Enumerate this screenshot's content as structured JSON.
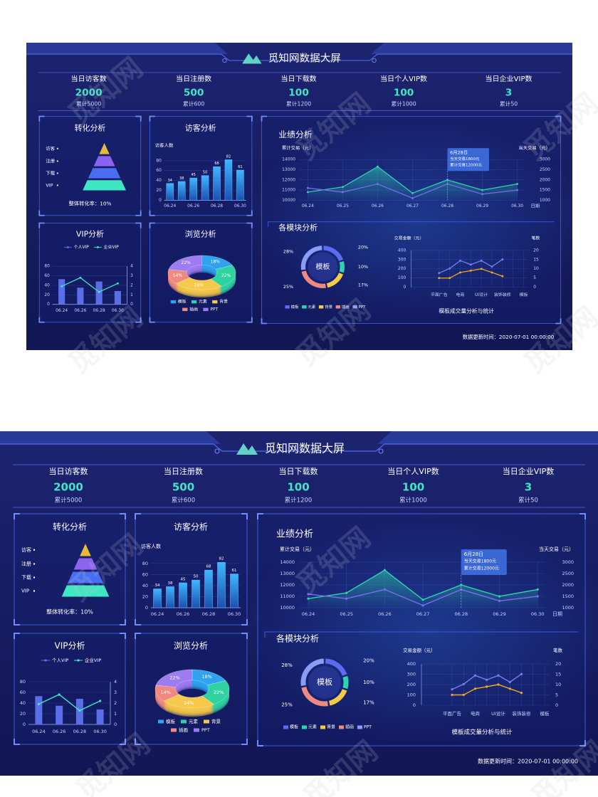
{
  "header": {
    "title": "觅知网数据大屏"
  },
  "kpis": [
    {
      "label": "当日访客数",
      "value": 2000,
      "total": "累计5000"
    },
    {
      "label": "当日注册数",
      "value": 500,
      "total": "累计600"
    },
    {
      "label": "当日下载数",
      "value": 100,
      "total": "累计1200"
    },
    {
      "label": "当日个人VIP数",
      "value": 100,
      "total": "累计1000"
    },
    {
      "label": "当日企业VIP数",
      "value": 3,
      "total": "累计50"
    }
  ],
  "chart_data": [
    {
      "type": "funnel",
      "title": "转化分析",
      "categories": [
        "访客",
        "注册",
        "下载",
        "VIP"
      ],
      "colors": [
        "#e9b83c",
        "#8a63f0",
        "#4a6df2",
        "#3fe6c2"
      ],
      "note": "整体转化率：10%"
    },
    {
      "type": "bar",
      "title": "访客分析",
      "ylabel": "访客人数",
      "categories": [
        "06.24",
        null,
        "06.26",
        null,
        "06.28",
        null,
        "06.30"
      ],
      "values": [
        34,
        38,
        45,
        50,
        68,
        82,
        61
      ],
      "color": "#2a8fd8",
      "ylim": [
        0,
        90
      ],
      "yticks": [
        0,
        20,
        40,
        60,
        80
      ],
      "grid": true
    },
    {
      "type": "bar-line",
      "title": "VIP分析",
      "categories": [
        "06.24",
        "06.26",
        "06.28",
        "06.30"
      ],
      "series": [
        {
          "name": "个人VIP",
          "color": "#5a6ee8",
          "values": [
            53,
            35,
            48,
            28
          ]
        },
        {
          "name": "企业VIP",
          "color": "#3fe6c2",
          "values": [
            1.9,
            2.8,
            1.3,
            2.2
          ],
          "axis": "y2"
        }
      ],
      "ylim": [
        0,
        80
      ],
      "yticks": [
        0,
        20,
        40,
        60,
        80
      ],
      "y2lim": [
        0,
        4
      ],
      "y2ticks": [
        0,
        1,
        2,
        3,
        4
      ],
      "grid": true,
      "legend": "top"
    },
    {
      "type": "pie3d",
      "title": "浏览分析",
      "categories": [
        "模板",
        "元素",
        "背景",
        "插画",
        "PPT"
      ],
      "values": [
        18,
        22,
        24,
        14,
        22
      ],
      "value_labels": [
        "18%",
        "22%",
        "24%",
        "14%",
        "22%"
      ],
      "colors": [
        "#2fa3f0",
        "#2fd3a0",
        "#f5c94a",
        "#f08a80",
        "#9c7cf0"
      ],
      "legend": "bottom"
    },
    {
      "type": "line",
      "title": "业绩分析",
      "ylabel": "累计交易（元）",
      "y2label": "当天交易（元）",
      "xlabel": "日期",
      "categories": [
        "06.24",
        "06.25",
        "06.26",
        "06.27",
        "06.28",
        "06.29",
        "06.30"
      ],
      "series": [
        {
          "color": "#2fd3b0",
          "values": [
            10800,
            11300,
            13300,
            10700,
            12000,
            11000,
            11600
          ],
          "area": true
        },
        {
          "color": "#7a6cf0",
          "values": [
            1600,
            1400,
            1800,
            1100,
            1800,
            1300,
            1500
          ],
          "axis": "y2"
        }
      ],
      "ylim": [
        10000,
        14000
      ],
      "yticks": [
        10000,
        11000,
        12000,
        13000,
        14000
      ],
      "y2lim": [
        1000,
        3000
      ],
      "y2ticks": [
        1000,
        1500,
        2000,
        2500,
        3000
      ],
      "grid": true,
      "annotation": [
        "6月28日",
        "当天交易1800元",
        "累计交易12000元"
      ]
    },
    {
      "type": "donut",
      "title": "各模块分析",
      "center_label": "模板",
      "categories": [
        "模板",
        "元素",
        "背景",
        "插画",
        "PPT"
      ],
      "values": [
        20,
        10,
        17,
        25,
        28
      ],
      "value_labels": [
        "20%",
        "10%",
        "17%",
        "25%",
        "28%"
      ],
      "colors": [
        "#5b6cf0",
        "#2fd3b0",
        "#f5c94a",
        "#f08a80",
        "#8a9cf5"
      ],
      "legend": "bottom"
    },
    {
      "type": "line",
      "title": "模板成交量分析与统计",
      "ylabel": "交易金额（元）",
      "y2label": "笔数",
      "categories": [
        "平面广告",
        null,
        "电商",
        null,
        "UI设计",
        null,
        "装饰装修",
        null,
        "模板"
      ],
      "series": [
        {
          "color": "#7a7cf5",
          "values": [
            154,
            204,
            288,
            246,
            288,
            224,
            302,
            null,
            null
          ]
        },
        {
          "color": "#f5a623",
          "values": [
            5,
            5,
            8,
            9,
            10,
            8,
            6,
            null,
            null
          ],
          "axis": "y2"
        }
      ],
      "ylim": [
        0,
        400
      ],
      "yticks": [
        0,
        100,
        200,
        300,
        400
      ],
      "y2lim": [
        0,
        20
      ],
      "y2ticks": [
        0,
        5,
        10,
        15,
        20
      ],
      "grid": true
    }
  ],
  "update_time": "数据更新时间：2020-07-01  00:00:00",
  "watermark": "觅知网"
}
